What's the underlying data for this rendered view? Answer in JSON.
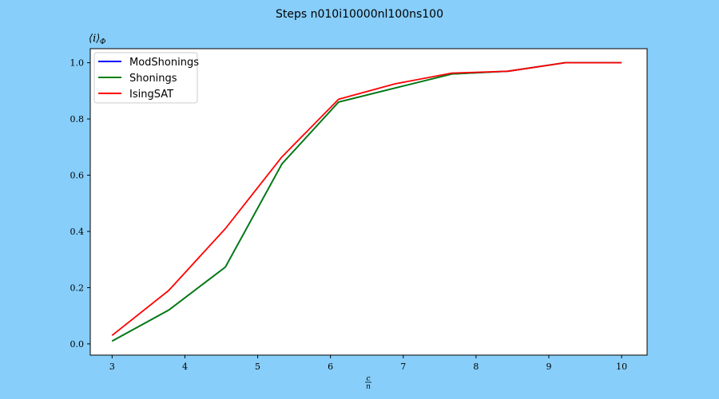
{
  "colors": {
    "background": "#87CEFA",
    "plot_area": "#FFFFFF",
    "axes": "#000000"
  },
  "chart_data": {
    "type": "line",
    "title": "Steps n010i10000nl100ns100",
    "ylabel_main": "⟨i⟩",
    "ylabel_sub": "Φ",
    "xlabel_num": "c",
    "xlabel_den": "n",
    "xlim": [
      2.7,
      10.35
    ],
    "ylim": [
      -0.04,
      1.05
    ],
    "xticks": [
      3,
      4,
      5,
      6,
      7,
      8,
      9,
      10
    ],
    "yticks": [
      0.0,
      0.2,
      0.4,
      0.6,
      0.8,
      1.0
    ],
    "ytick_labels": [
      "0.0",
      "0.2",
      "0.4",
      "0.6",
      "0.8",
      "1.0"
    ],
    "grid": false,
    "legend_placement": "top-left",
    "x": [
      3,
      3.7778,
      4.5556,
      5.3333,
      6.1111,
      6.8889,
      7.6667,
      8.4444,
      9.2222,
      10
    ],
    "series": [
      {
        "name": "ModShonings",
        "color": "#0000FF",
        "values": [
          0.01,
          0.12,
          0.273,
          0.64,
          0.86,
          0.91,
          0.96,
          0.97,
          1.0,
          1.0
        ]
      },
      {
        "name": "Shonings",
        "color": "#008000",
        "values": [
          0.01,
          0.12,
          0.273,
          0.64,
          0.86,
          0.91,
          0.96,
          0.97,
          1.0,
          1.0
        ]
      },
      {
        "name": "IsingSAT",
        "color": "#FF0000",
        "values": [
          0.03,
          0.19,
          0.41,
          0.665,
          0.87,
          0.925,
          0.963,
          0.97,
          1.0,
          1.0
        ]
      }
    ]
  }
}
